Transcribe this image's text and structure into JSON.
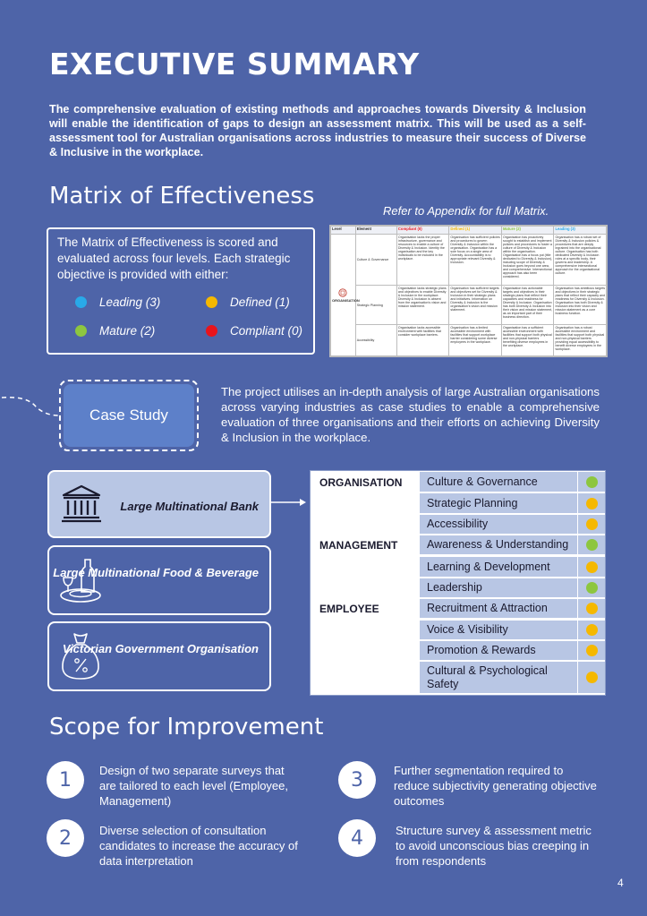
{
  "page": {
    "title": "EXECUTIVE SUMMARY",
    "intro": "The comprehensive evaluation of existing methods and approaches towards Diversity & Inclusion will enable the identification of gaps to design an assessment matrix. This will be used as a self-assessment tool for Australian organisations across industries to measure their success of Diverse & Inclusive in the workplace.",
    "page_number": "4"
  },
  "matrix": {
    "heading": "Matrix of Effectiveness",
    "description": "The Matrix of Effectiveness is scored and evaluated across four levels. Each strategic objective is provided with either:",
    "legend": [
      {
        "label": "Leading (3)",
        "color": "#29a9e8"
      },
      {
        "label": "Defined (1)",
        "color": "#f5b800"
      },
      {
        "label": "Mature (2)",
        "color": "#8dc63f"
      },
      {
        "label": "Compliant (0)",
        "color": "#e8141c"
      }
    ],
    "appendix_note": "Refer to Appendix for full Matrix.",
    "thumbnail": {
      "headers": [
        "Level",
        "Element",
        "Compliant (0)",
        "Defined (1)",
        "Mature (2)",
        "Leading (3)"
      ],
      "header_colors": [
        "#333333",
        "#333333",
        "#e8141c",
        "#f5b800",
        "#8dc63f",
        "#29a9e8"
      ],
      "level": "ORGANISATION",
      "rows": [
        {
          "element": "Culture & Governance",
          "cells": [
            "Organisation lacks the proper infrastructure, governance and resources to enable a culture of Diversity & Inclusion. Identity the organisation and the key individuals to be included in the workplace.",
            "Organisation has sufficient policies and procedures to govern Diversity & Inclusion within the organisation. Organisation has a sole focus on a single area of Diversity. Accountability is to appropriate relevant Diversity & Inclusion.",
            "Organisation has proactively sought to establish and implement policies and procedures to foster a culture of Diversity & Inclusion within the organisation. Organisation has a focus put (title dedicated to Diversity & Inclusion), including scope of Diversity & Inclusion goes beyond one area, and comprehensive. Intersectional approach has also been considered.",
            "Organisation has a robust set of Diversity & Inclusion policies & procedures that are deeply ingrained into the organisational culture. Organisation has both dedicated Diversity & Inclusion roles at a specific body, their governs and leadership. A comprehensive intersectional approach for the organisational culture."
          ]
        },
        {
          "element": "Strategic Planning",
          "cells": [
            "Organisation lacks strategic plans and objectives to enable Diversity & Inclusion in the workplace. Diversity & Inclusion is absent from the organisation's vision and mission statement.",
            "Organisation has sufficient targets and objectives set for Diversity & Inclusion in their strategic plans and initiatives. Information on Diversity & Inclusion is the organisation's vision and mission statement.",
            "Organisation has actionable targets and objectives in their strategic plans that reflect their capacities and readiness for Diversity & Inclusion. Organisation has both Diversity & Inclusion into their vision and mission statement, as an important part of their business direction.",
            "Organisation has ambitious targets and objectives in their strategic plans that reflect their capacity and readiness for Diversity & Inclusion. Organisation has both Diversity & Inclusion into their vision and mission statement as a core business function."
          ]
        },
        {
          "element": "Accessibility",
          "cells": [
            "Organisation lacks accessible environment with facilities that consider workplace barriers.",
            "Organisation has a limited accessible environment with facilities that support workplace barrier considering some diverse employees in the workplace.",
            "Organisation has a sufficient accessible environment with facilities that support both physical and non-physical barriers benefiting diverse employees in the workplace.",
            "Organisation has a robust accessible environment and facilities that support both physical and non-physical barriers providing equal accessibility to benefit diverse employees in the workplace."
          ]
        }
      ]
    }
  },
  "case_study": {
    "label": "Case Study",
    "description": "The project utilises an in-depth analysis of large Australian organisations across varying industries as case studies to enable a comprehensive evaluation of three organisations and their efforts on achieving Diversity & Inclusion in the workplace.",
    "organisations": [
      {
        "name": "Large Multinational Bank",
        "icon": "bank-icon"
      },
      {
        "name": "Large Multinational Food & Beverage",
        "icon": "food-beverage-icon"
      },
      {
        "name": "Victorian Government Organisation",
        "icon": "money-bag-icon"
      }
    ]
  },
  "evaluation": {
    "categories": [
      {
        "name": "ORGANISATION",
        "items": [
          {
            "label": "Culture & Governance",
            "status": "Mature",
            "color": "#8dc63f"
          },
          {
            "label": "Strategic Planning",
            "status": "Defined",
            "color": "#f5b800"
          },
          {
            "label": "Accessibility",
            "status": "Defined",
            "color": "#f5b800"
          }
        ]
      },
      {
        "name": "MANAGEMENT",
        "items": [
          {
            "label": "Awareness & Understanding",
            "status": "Mature",
            "color": "#8dc63f"
          },
          {
            "label": "Learning & Development",
            "status": "Defined",
            "color": "#f5b800"
          },
          {
            "label": "Leadership",
            "status": "Mature",
            "color": "#8dc63f"
          }
        ]
      },
      {
        "name": "EMPLOYEE",
        "items": [
          {
            "label": "Recruitment & Attraction",
            "status": "Defined",
            "color": "#f5b800"
          },
          {
            "label": "Voice & Visibility",
            "status": "Defined",
            "color": "#f5b800"
          },
          {
            "label": "Promotion & Rewards",
            "status": "Defined",
            "color": "#f5b800"
          },
          {
            "label": "Cultural & Psychological Safety",
            "status": "Defined",
            "color": "#f5b800"
          }
        ]
      }
    ]
  },
  "scope": {
    "heading": "Scope for Improvement",
    "items": [
      {
        "number": "1",
        "text": "Design of two separate surveys that are tailored to each level (Employee, Management)"
      },
      {
        "number": "2",
        "text": "Diverse selection of consultation candidates to increase the accuracy of data interpretation"
      },
      {
        "number": "3",
        "text": "Further segmentation required to reduce subjectivity generating objective outcomes"
      },
      {
        "number": "4",
        "text": "Structure survey & assessment metric to avoid unconscious bias creeping in from respondents"
      }
    ]
  }
}
